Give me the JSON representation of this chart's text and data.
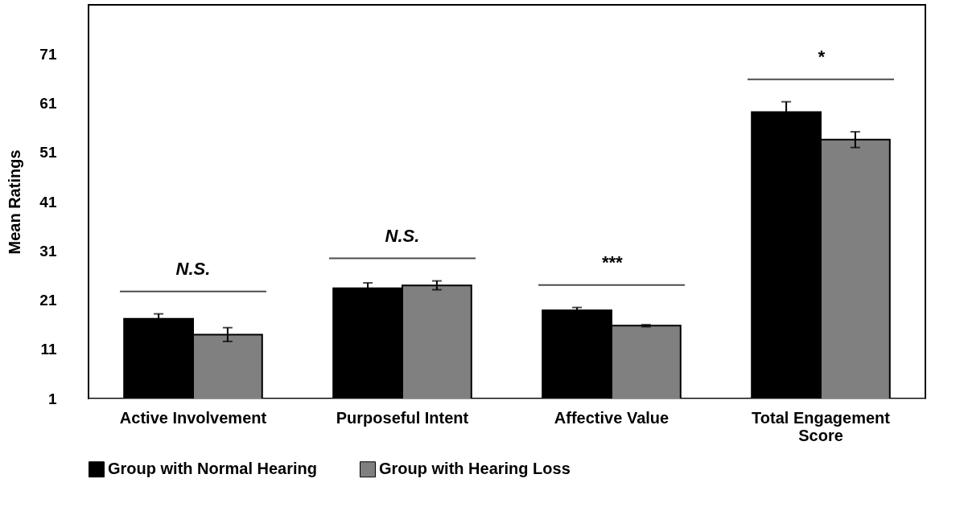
{
  "chart_data": {
    "type": "bar",
    "ylabel": "Mean Ratings",
    "categories": [
      "Active Involvement",
      "Purposeful Intent",
      "Affective Value",
      "Total Engagement Score"
    ],
    "series": [
      {
        "name": "Group with Normal Hearing",
        "color": "#000000",
        "values": [
          17.2,
          23.4,
          18.9,
          59.2
        ],
        "errors": [
          1.0,
          1.1,
          0.6,
          2.1
        ]
      },
      {
        "name": "Group with Hearing Loss",
        "color": "#808080",
        "values": [
          14.0,
          24.0,
          15.8,
          53.6
        ],
        "errors": [
          1.4,
          0.9,
          0.2,
          1.6
        ]
      }
    ],
    "ylim": [
      1,
      81
    ],
    "yticks": [
      1,
      11,
      21,
      31,
      41,
      51,
      61,
      71
    ],
    "grid": false,
    "legend": "bottom",
    "annotations": [
      "N.S.",
      "N.S.",
      "***",
      "*"
    ]
  }
}
